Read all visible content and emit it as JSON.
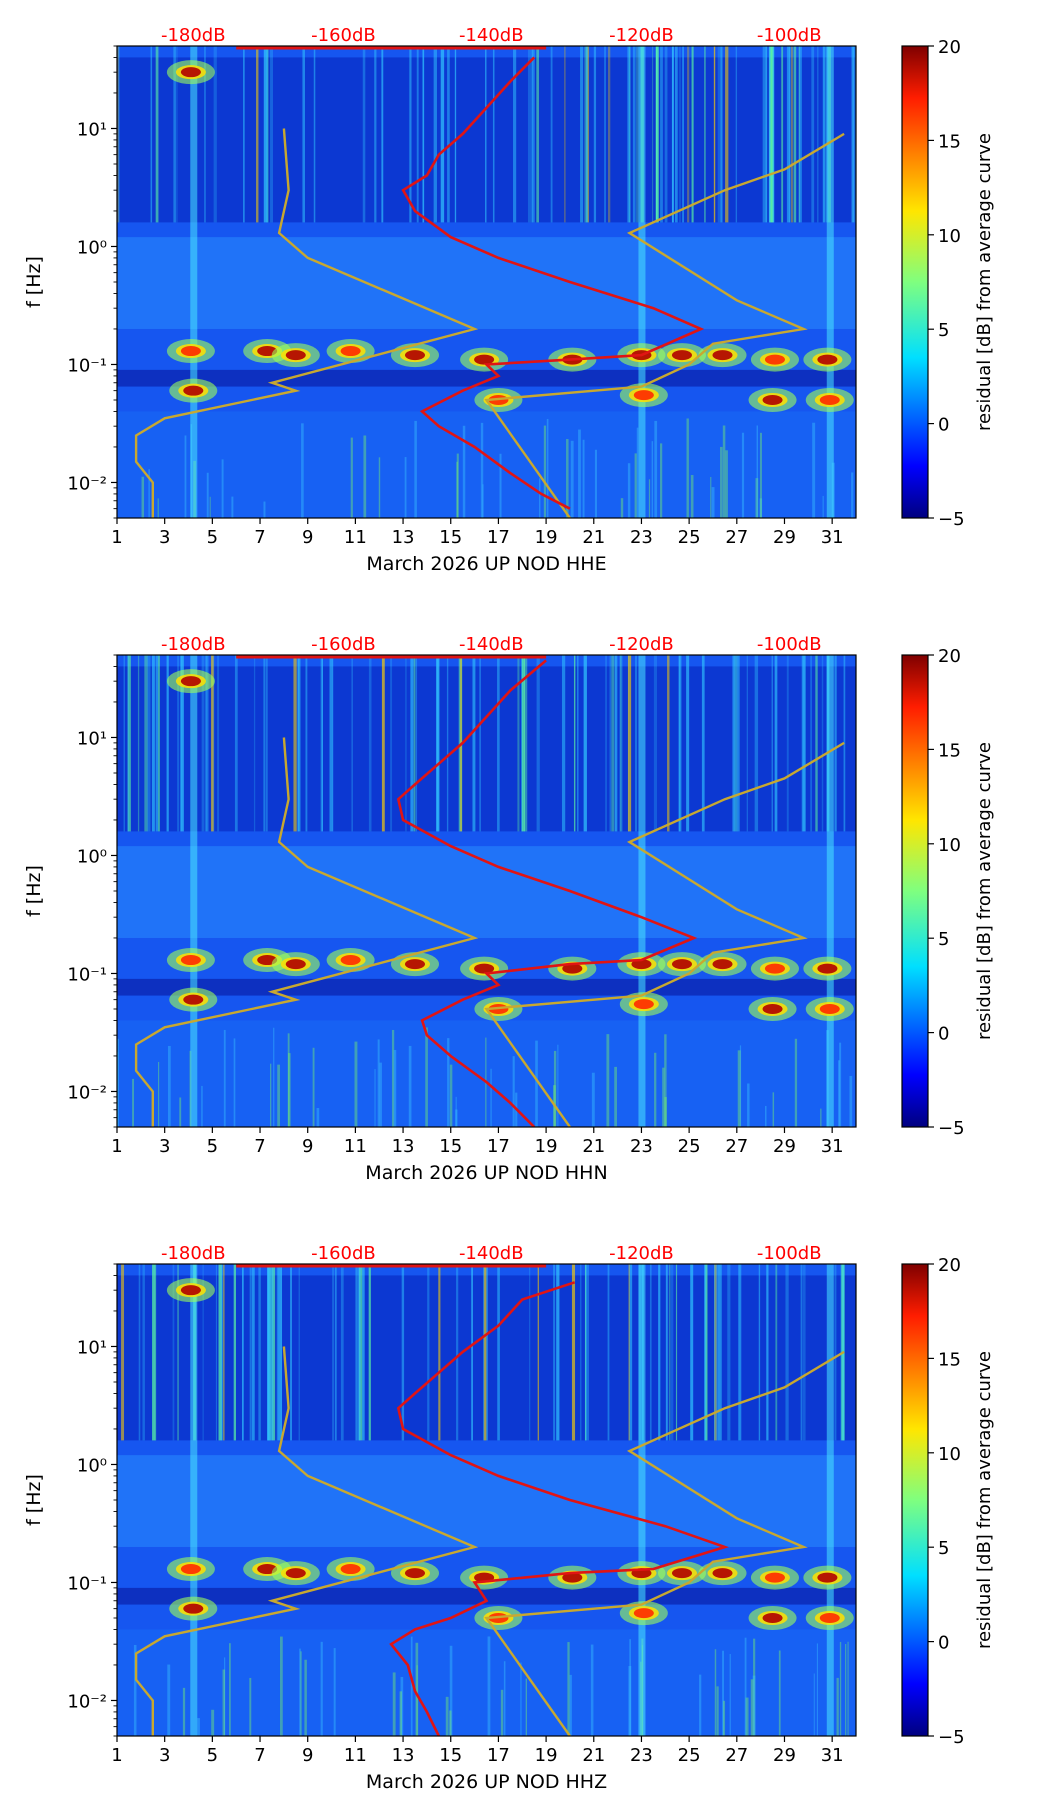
{
  "colors": {
    "axis": "#000000",
    "top_scale_text": "#ff0000",
    "psd_curve": "#e01414",
    "noise_model": "#c8a830",
    "background_field": "#1656f0"
  },
  "colorbar": {
    "label": "residual [dB] from average curve",
    "ticks": [
      "−5",
      "0",
      "5",
      "10",
      "15",
      "20"
    ],
    "tick_values": [
      -5,
      0,
      5,
      10,
      15,
      20
    ],
    "range": [
      -5,
      20
    ]
  },
  "chart_data": [
    {
      "type": "heatmap",
      "channel": "HHE",
      "xlabel": "March 2026 UP NOD  HHE",
      "ylabel": "f [Hz]",
      "x_ticks": [
        "1",
        "3",
        "5",
        "7",
        "9",
        "11",
        "13",
        "15",
        "17",
        "19",
        "21",
        "23",
        "25",
        "27",
        "29",
        "31"
      ],
      "x_tick_values": [
        1,
        3,
        5,
        7,
        9,
        11,
        13,
        15,
        17,
        19,
        21,
        23,
        25,
        27,
        29,
        31
      ],
      "xlim": [
        1,
        32
      ],
      "y_ticks": [
        "10⁻²",
        "10⁻¹",
        "10⁰",
        "10¹"
      ],
      "y_tick_values": [
        0.01,
        0.1,
        1,
        10
      ],
      "ylim": [
        0.005,
        50
      ],
      "top_scale_labels": [
        "-180dB",
        "-160dB",
        "-140dB",
        "-120dB",
        "-100dB"
      ],
      "top_scale_values": [
        -180,
        -160,
        -140,
        -120,
        -100
      ],
      "top_scale_positions_day": [
        4.2,
        10.5,
        16.7,
        23,
        29.2
      ],
      "mean_psd_curve": [
        [
          20,
          0.006
        ],
        [
          18.8,
          0.008
        ],
        [
          17.5,
          0.012
        ],
        [
          16,
          0.02
        ],
        [
          14.5,
          0.03
        ],
        [
          13.8,
          0.04
        ],
        [
          15.5,
          0.06
        ],
        [
          17,
          0.08
        ],
        [
          16.5,
          0.1
        ],
        [
          20,
          0.11
        ],
        [
          23,
          0.12
        ],
        [
          25.5,
          0.2
        ],
        [
          23.5,
          0.3
        ],
        [
          20,
          0.5
        ],
        [
          17,
          0.8
        ],
        [
          15,
          1.2
        ],
        [
          13.5,
          2
        ],
        [
          13,
          3
        ],
        [
          14,
          4
        ],
        [
          14.5,
          6
        ],
        [
          15.5,
          9
        ],
        [
          16.5,
          15
        ],
        [
          17.5,
          25
        ],
        [
          18.5,
          40
        ]
      ],
      "noise_model_low": [
        [
          2.5,
          0.005
        ],
        [
          2.5,
          0.01
        ],
        [
          1.8,
          0.015
        ],
        [
          1.8,
          0.025
        ],
        [
          3,
          0.035
        ],
        [
          8.5,
          0.06
        ],
        [
          7.5,
          0.07
        ],
        [
          16,
          0.2
        ],
        [
          12.5,
          0.4
        ],
        [
          9,
          0.8
        ],
        [
          7.8,
          1.3
        ],
        [
          8.2,
          3
        ],
        [
          8,
          10
        ]
      ],
      "noise_model_high": [
        [
          20,
          0.005
        ],
        [
          16.5,
          0.05
        ],
        [
          23,
          0.065
        ],
        [
          25,
          0.1
        ],
        [
          26,
          0.15
        ],
        [
          29.8,
          0.2
        ],
        [
          27,
          0.35
        ],
        [
          22.5,
          1.3
        ],
        [
          26.5,
          3
        ],
        [
          29,
          4.5
        ],
        [
          31.5,
          9
        ]
      ]
    },
    {
      "type": "heatmap",
      "channel": "HHN",
      "xlabel": "March 2026 UP NOD  HHN",
      "ylabel": "f [Hz]",
      "x_ticks": [
        "1",
        "3",
        "5",
        "7",
        "9",
        "11",
        "13",
        "15",
        "17",
        "19",
        "21",
        "23",
        "25",
        "27",
        "29",
        "31"
      ],
      "x_tick_values": [
        1,
        3,
        5,
        7,
        9,
        11,
        13,
        15,
        17,
        19,
        21,
        23,
        25,
        27,
        29,
        31
      ],
      "xlim": [
        1,
        32
      ],
      "y_ticks": [
        "10⁻²",
        "10⁻¹",
        "10⁰",
        "10¹"
      ],
      "y_tick_values": [
        0.01,
        0.1,
        1,
        10
      ],
      "ylim": [
        0.005,
        50
      ],
      "top_scale_labels": [
        "-180dB",
        "-160dB",
        "-140dB",
        "-120dB",
        "-100dB"
      ],
      "top_scale_values": [
        -180,
        -160,
        -140,
        -120,
        -100
      ],
      "top_scale_positions_day": [
        4.2,
        10.5,
        16.7,
        23,
        29.2
      ],
      "mean_psd_curve": [
        [
          18.5,
          0.005
        ],
        [
          17.5,
          0.008
        ],
        [
          16.5,
          0.012
        ],
        [
          15,
          0.02
        ],
        [
          14,
          0.03
        ],
        [
          13.8,
          0.04
        ],
        [
          15.5,
          0.06
        ],
        [
          17,
          0.08
        ],
        [
          16.5,
          0.1
        ],
        [
          20,
          0.12
        ],
        [
          23,
          0.13
        ],
        [
          25.2,
          0.2
        ],
        [
          23,
          0.3
        ],
        [
          20,
          0.5
        ],
        [
          17,
          0.8
        ],
        [
          15,
          1.2
        ],
        [
          13,
          2
        ],
        [
          12.8,
          3
        ],
        [
          13.5,
          4
        ],
        [
          14.5,
          6
        ],
        [
          15.5,
          9
        ],
        [
          16.5,
          15
        ],
        [
          17.5,
          25
        ],
        [
          19,
          45
        ]
      ],
      "noise_model_low": [
        [
          2.5,
          0.005
        ],
        [
          2.5,
          0.01
        ],
        [
          1.8,
          0.015
        ],
        [
          1.8,
          0.025
        ],
        [
          3,
          0.035
        ],
        [
          8.5,
          0.06
        ],
        [
          7.5,
          0.07
        ],
        [
          16,
          0.2
        ],
        [
          12.5,
          0.4
        ],
        [
          9,
          0.8
        ],
        [
          7.8,
          1.3
        ],
        [
          8.2,
          3
        ],
        [
          8,
          10
        ]
      ],
      "noise_model_high": [
        [
          20,
          0.005
        ],
        [
          16.5,
          0.05
        ],
        [
          23,
          0.065
        ],
        [
          25,
          0.1
        ],
        [
          26,
          0.15
        ],
        [
          29.8,
          0.2
        ],
        [
          27,
          0.35
        ],
        [
          22.5,
          1.3
        ],
        [
          26.5,
          3
        ],
        [
          29,
          4.5
        ],
        [
          31.5,
          9
        ]
      ]
    },
    {
      "type": "heatmap",
      "channel": "HHZ",
      "xlabel": "March 2026 UP NOD  HHZ",
      "ylabel": "f [Hz]",
      "x_ticks": [
        "1",
        "3",
        "5",
        "7",
        "9",
        "11",
        "13",
        "15",
        "17",
        "19",
        "21",
        "23",
        "25",
        "27",
        "29",
        "31"
      ],
      "x_tick_values": [
        1,
        3,
        5,
        7,
        9,
        11,
        13,
        15,
        17,
        19,
        21,
        23,
        25,
        27,
        29,
        31
      ],
      "xlim": [
        1,
        32
      ],
      "y_ticks": [
        "10⁻²",
        "10⁻¹",
        "10⁰",
        "10¹"
      ],
      "y_tick_values": [
        0.01,
        0.1,
        1,
        10
      ],
      "ylim": [
        0.005,
        50
      ],
      "top_scale_labels": [
        "-180dB",
        "-160dB",
        "-140dB",
        "-120dB",
        "-100dB"
      ],
      "top_scale_values": [
        -180,
        -160,
        -140,
        -120,
        -100
      ],
      "top_scale_positions_day": [
        4.2,
        10.5,
        16.7,
        23,
        29.2
      ],
      "mean_psd_curve": [
        [
          14.5,
          0.005
        ],
        [
          14,
          0.008
        ],
        [
          13.5,
          0.012
        ],
        [
          13.2,
          0.02
        ],
        [
          12.5,
          0.03
        ],
        [
          13.5,
          0.04
        ],
        [
          15,
          0.05
        ],
        [
          16.5,
          0.07
        ],
        [
          16,
          0.1
        ],
        [
          20,
          0.12
        ],
        [
          23.5,
          0.13
        ],
        [
          26.5,
          0.2
        ],
        [
          24,
          0.3
        ],
        [
          20,
          0.5
        ],
        [
          17,
          0.8
        ],
        [
          15,
          1.2
        ],
        [
          13,
          2
        ],
        [
          12.8,
          3
        ],
        [
          13.5,
          4
        ],
        [
          14.5,
          6
        ],
        [
          15.5,
          9
        ],
        [
          17,
          15
        ],
        [
          18,
          25
        ],
        [
          20.2,
          35
        ]
      ],
      "noise_model_low": [
        [
          2.5,
          0.005
        ],
        [
          2.5,
          0.01
        ],
        [
          1.8,
          0.015
        ],
        [
          1.8,
          0.025
        ],
        [
          3,
          0.035
        ],
        [
          8.5,
          0.06
        ],
        [
          7.5,
          0.07
        ],
        [
          16,
          0.2
        ],
        [
          12.5,
          0.4
        ],
        [
          9,
          0.8
        ],
        [
          7.8,
          1.3
        ],
        [
          8.2,
          3
        ],
        [
          8,
          10
        ]
      ],
      "noise_model_high": [
        [
          20,
          0.005
        ],
        [
          16.5,
          0.05
        ],
        [
          23,
          0.065
        ],
        [
          25,
          0.1
        ],
        [
          26,
          0.15
        ],
        [
          29.8,
          0.2
        ],
        [
          27,
          0.35
        ],
        [
          22.5,
          1.3
        ],
        [
          26.5,
          3
        ],
        [
          29,
          4.5
        ],
        [
          31.5,
          9
        ]
      ]
    }
  ]
}
